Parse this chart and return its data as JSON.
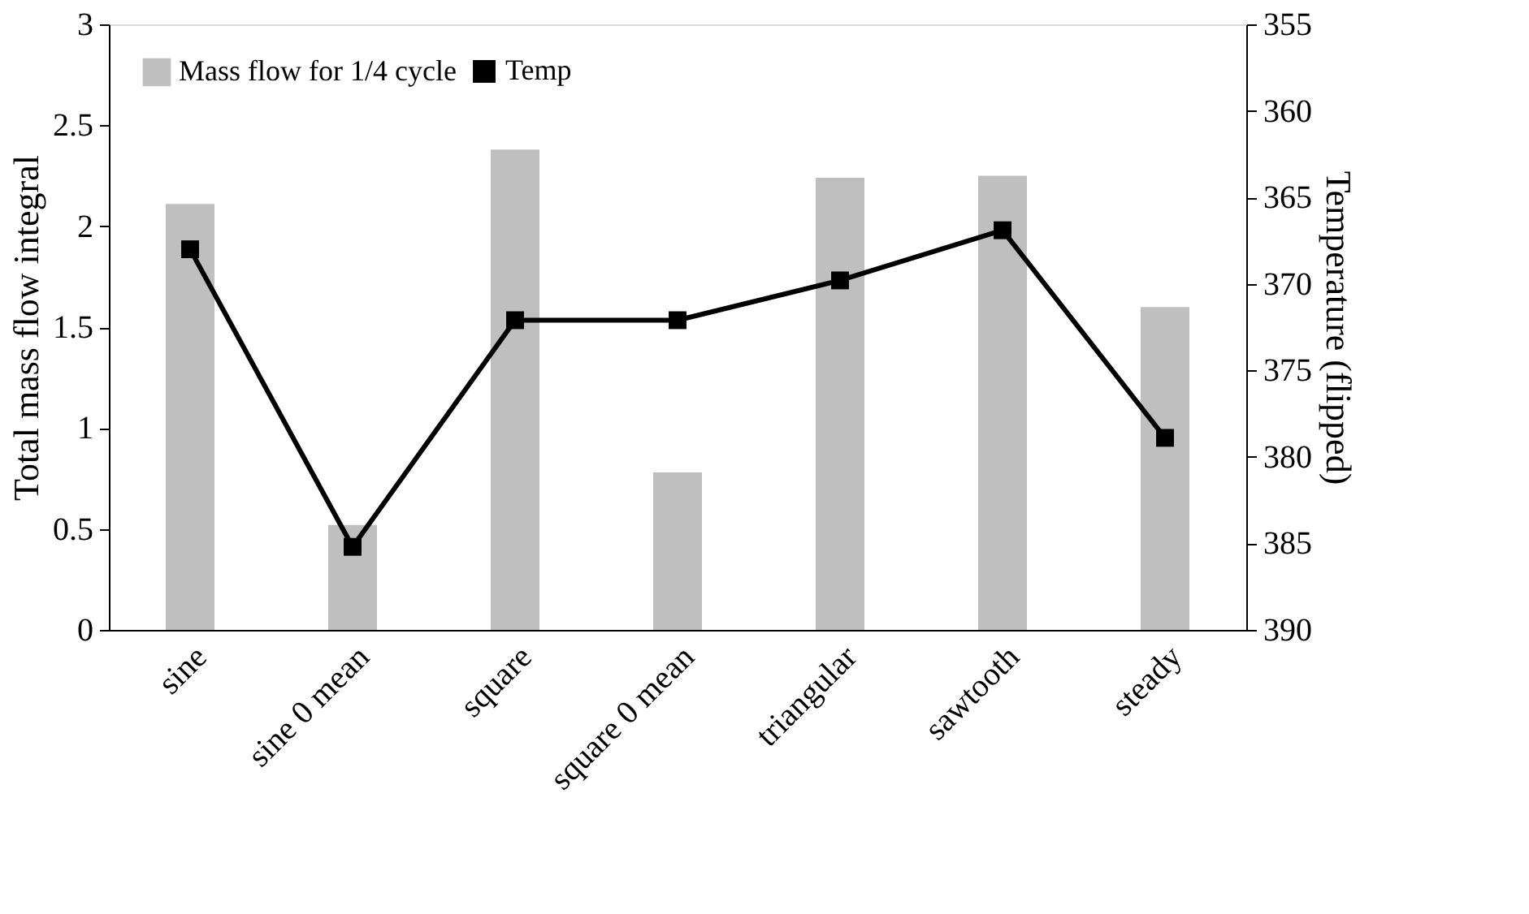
{
  "chart_data": {
    "type": "bar",
    "ylabel": "Total mass flow integral",
    "y2label": "Temperature (flipped)",
    "categories": [
      "sine",
      "sine 0 mean",
      "square",
      "square 0 mean",
      "triangular",
      "sawtooth",
      "steady"
    ],
    "series": [
      {
        "name": "Mass flow for 1/4 cycle",
        "color": "#bfbfbf",
        "values": [
          2.11,
          0.52,
          2.38,
          0.78,
          2.24,
          2.25,
          1.6
        ]
      },
      {
        "name": "Temp",
        "type": "line",
        "axis": "y2",
        "color": "#000000",
        "marker": "square",
        "line_style": "solid",
        "values": [
          368.0,
          385.2,
          372.1,
          372.1,
          369.8,
          366.9,
          378.9
        ]
      }
    ],
    "ylim": [
      0,
      3
    ],
    "yticks": [
      0,
      0.5,
      1,
      1.5,
      2,
      2.5,
      3
    ],
    "y2lim": [
      390,
      355
    ],
    "y2ticks": [
      355,
      360,
      365,
      370,
      375,
      380,
      385,
      390
    ],
    "grid": false,
    "legend": "top left"
  }
}
